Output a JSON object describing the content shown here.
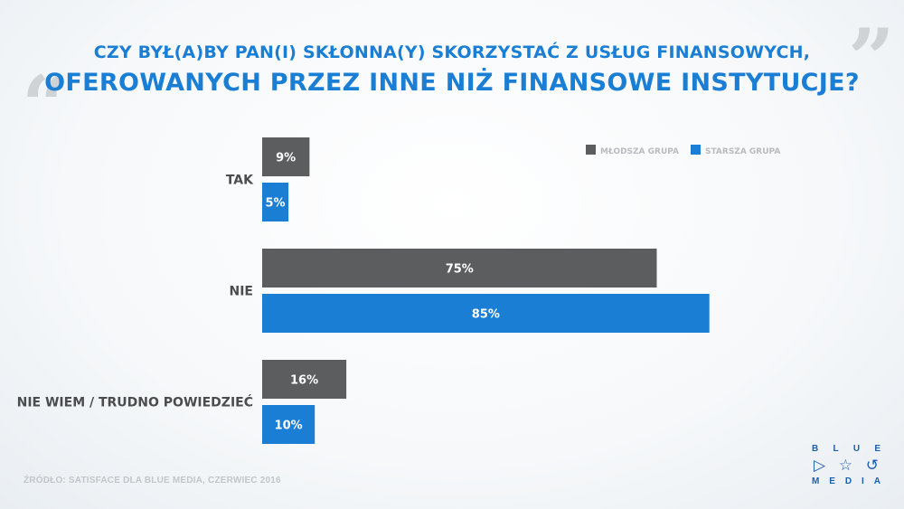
{
  "title_line1": "CZY BYŁ(A)BY PAN(I) SKŁONNA(Y) SKORZYSTAĆ Z USŁUG FINANSOWYCH,",
  "title_line2": "OFEROWANYCH PRZEZ INNE NIŻ FINANSOWE INSTYTUCJE?",
  "source": "ŹRÓDŁO: SATISFACE DLA BLUE MEDIA, CZERWIEC 2016",
  "logo": {
    "top_letters": [
      "B",
      "L",
      "U",
      "E"
    ],
    "bottom_letters": [
      "M",
      "E",
      "D",
      "I",
      "A"
    ],
    "icons": [
      "play-icon",
      "star-icon",
      "spiral-icon"
    ]
  },
  "colors": {
    "older": "#1a7fd4",
    "younger": "#5b5d5e",
    "title": "#1a7fd4"
  },
  "chart_data": {
    "type": "bar",
    "orientation": "horizontal",
    "categories": [
      "TAK",
      "NIE",
      "NIE WIEM / TRUDNO POWIEDZIEĆ"
    ],
    "series": [
      {
        "name": "MŁODSZA GRUPA",
        "values": [
          9,
          75,
          16
        ],
        "color": "#5b5d5e"
      },
      {
        "name": "STARSZA GRUPA",
        "values": [
          5,
          85,
          10
        ],
        "color": "#1a7fd4"
      }
    ],
    "unit": "%",
    "xlim": [
      0,
      100
    ],
    "legend_position": "top-right",
    "grid": false
  }
}
